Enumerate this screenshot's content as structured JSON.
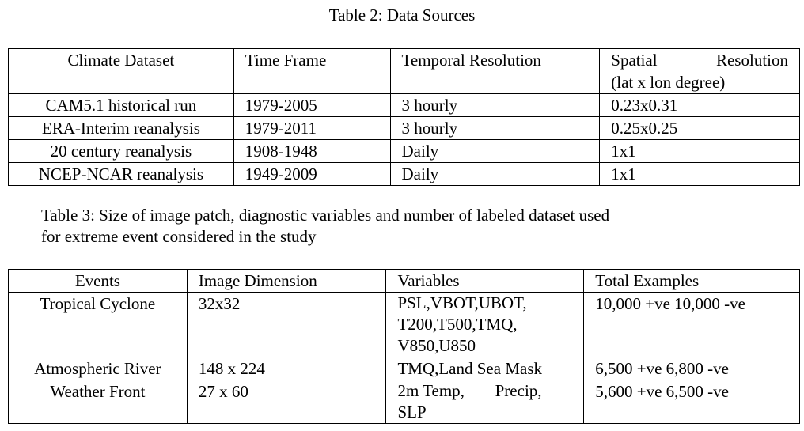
{
  "table2": {
    "caption": "Table 2: Data Sources",
    "headers": [
      "Climate Dataset",
      "Time Frame",
      "Temporal Resolution",
      "Spatial Resolution",
      "(lat x lon degree)"
    ],
    "rows": [
      [
        "CAM5.1 historical run",
        "1979-2005",
        "3 hourly",
        "0.23x0.31"
      ],
      [
        "ERA-Interim reanalysis",
        "1979-2011",
        "3 hourly",
        "0.25x0.25"
      ],
      [
        "20 century reanalysis",
        "1908-1948",
        "Daily",
        "1x1"
      ],
      [
        "NCEP-NCAR reanalysis",
        "1949-2009",
        "Daily",
        "1x1"
      ]
    ]
  },
  "table3": {
    "caption_line1": "Table 3: Size of image patch, diagnostic variables and number of labeled dataset used",
    "caption_line2": "for extreme event considered in the study",
    "headers": [
      "Events",
      "Image Dimension",
      "Variables",
      "Total Examples"
    ],
    "rows": [
      {
        "event": "Tropical Cyclone",
        "dim": "32x32",
        "vars": [
          "PSL,VBOT,UBOT,",
          "T200,T500,TMQ,",
          "V850,U850"
        ],
        "total": "10,000 +ve 10,000 -ve"
      },
      {
        "event": "Atmospheric River",
        "dim": "148 x 224",
        "vars": [
          "TMQ,Land Sea Mask"
        ],
        "total": "6,500 +ve 6,800 -ve"
      },
      {
        "event": "Weather Front",
        "dim": "27 x 60",
        "vars": [
          "2m Temp, Precip,",
          "SLP"
        ],
        "total": "5,600 +ve 6,500 -ve"
      }
    ]
  }
}
